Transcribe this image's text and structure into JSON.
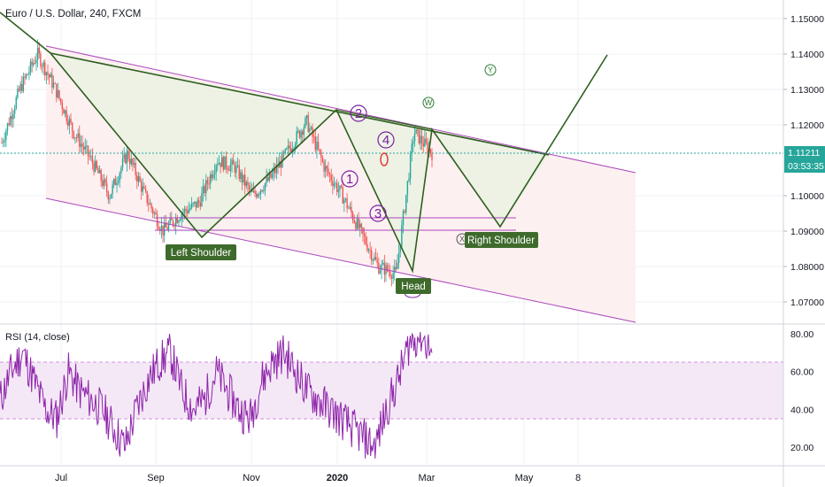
{
  "header": {
    "symbol_title": "Euro / U.S. Dollar, 240, FXCM"
  },
  "price_axis": {
    "ticks": [
      "1.15000",
      "1.14000",
      "1.13000",
      "1.12000",
      "1.11211",
      "1.10000",
      "1.09000",
      "1.08000",
      "1.07000"
    ],
    "current_price": "1.11211",
    "countdown": "03:53:35",
    "current_color": "#26a69a"
  },
  "rsi_panel": {
    "label": "RSI (14, close)",
    "ticks": [
      "80.00",
      "60.00",
      "40.00",
      "20.00"
    ],
    "upper_band": 65,
    "lower_band": 35,
    "band_color": "#9c27b0"
  },
  "time_axis": {
    "labels": [
      "Jul",
      "Sep",
      "Nov",
      "2020",
      "Mar",
      "May",
      "8"
    ]
  },
  "annotations": {
    "left_shoulder": "Left Shoulder",
    "head": "Head",
    "right_shoulder": "Right Shoulder",
    "wave_1": "1",
    "wave_2": "2",
    "wave_3": "3",
    "wave_4": "4",
    "wave_w": "W",
    "wave_x": "X",
    "wave_y": "Y",
    "label_bg": "#3e6b2c",
    "pattern_line": "#2f5f1e",
    "channel_line": "#ab47bc"
  },
  "chart_data": [
    {
      "type": "line",
      "title": "Euro / U.S. Dollar, 240, FXCM",
      "y_axis": "price",
      "ylim": [
        1.065,
        1.155
      ],
      "x_labels": [
        "Jul",
        "Sep",
        "Nov",
        "2020",
        "Mar",
        "May",
        "8"
      ],
      "series": [
        {
          "name": "",
          "points": [
            [
              "Jun",
              1.115
            ],
            [
              "Jun",
              1.13
            ],
            [
              "Jul",
              1.14
            ],
            [
              "Jul",
              1.13
            ],
            [
              "Jul",
              1.118
            ],
            [
              "Aug",
              1.11
            ],
            [
              "Aug",
              1.1
            ],
            [
              "Aug",
              1.112
            ],
            [
              "Sep",
              1.1
            ],
            [
              "Sep",
              1.09
            ],
            [
              "Sep",
              1.095
            ],
            [
              "Oct",
              1.098
            ],
            [
              "Oct",
              1.11
            ],
            [
              "Nov",
              1.108
            ],
            [
              "Nov",
              1.1
            ],
            [
              "Dec",
              1.105
            ],
            [
              "Dec",
              1.113
            ],
            [
              "2020",
              1.121
            ],
            [
              "2020",
              1.108
            ],
            [
              "Jan",
              1.1
            ],
            [
              "Feb",
              1.09
            ],
            [
              "Feb",
              1.08
            ],
            [
              "Feb",
              1.078
            ],
            [
              "Mar",
              1.118
            ],
            [
              "Mar",
              1.112
            ]
          ]
        }
      ],
      "current_price": 1.11211
    },
    {
      "type": "line",
      "title": "RSI (14, close)",
      "ylim": [
        10,
        85
      ],
      "bands": [
        35,
        65
      ],
      "series": [
        {
          "name": "",
          "values": [
            45,
            60,
            70,
            55,
            40,
            35,
            60,
            50,
            45,
            40,
            30,
            20,
            40,
            55,
            65,
            70,
            50,
            40,
            45,
            60,
            50,
            40,
            35,
            55,
            65,
            70,
            60,
            50,
            45,
            40,
            35,
            30,
            25,
            20,
            40,
            55,
            75,
            80,
            70
          ]
        }
      ]
    }
  ]
}
